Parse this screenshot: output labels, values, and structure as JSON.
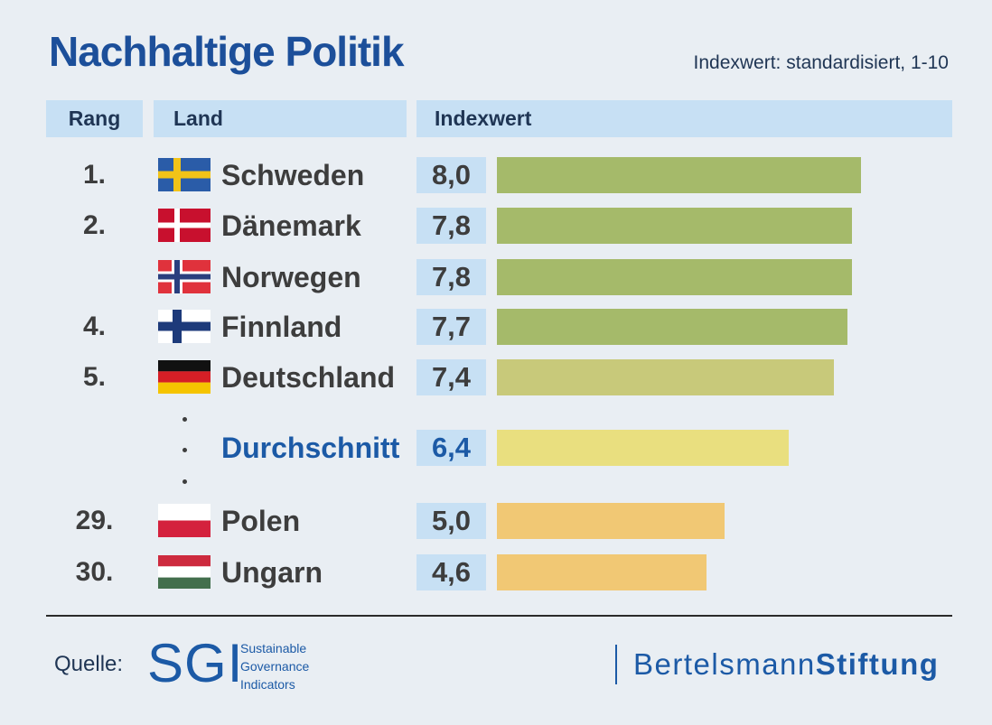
{
  "title": "Nachhaltige Politik",
  "subtitle": "Indexwert: standardisiert, 1-10",
  "headers": {
    "rang": "Rang",
    "land": "Land",
    "indexwert": "Indexwert"
  },
  "colors": {
    "green": "#a5ba6a",
    "light_green": "#c8c97a",
    "yellow": "#e9df7f",
    "orange": "#f1c874",
    "value_box": "#c7e0f4",
    "title": "#1c4f9a"
  },
  "chart_data": {
    "type": "bar",
    "orientation": "horizontal",
    "title": "Nachhaltige Politik",
    "subtitle": "Indexwert: standardisiert, 1-10",
    "xlim": [
      0,
      10
    ],
    "rows": [
      {
        "rank": "1.",
        "country": "Schweden",
        "flag": "sweden-flag",
        "value": 8.0,
        "label": "8,0",
        "color": "#a5ba6a"
      },
      {
        "rank": "2.",
        "country": "Dänemark",
        "flag": "denmark-flag",
        "value": 7.8,
        "label": "7,8",
        "color": "#a5ba6a"
      },
      {
        "rank": "",
        "country": "Norwegen",
        "flag": "norway-flag",
        "value": 7.8,
        "label": "7,8",
        "color": "#a5ba6a"
      },
      {
        "rank": "4.",
        "country": "Finnland",
        "flag": "finland-flag",
        "value": 7.7,
        "label": "7,7",
        "color": "#a5ba6a"
      },
      {
        "rank": "5.",
        "country": "Deutschland",
        "flag": "germany-flag",
        "value": 7.4,
        "label": "7,4",
        "color": "#c8c97a"
      },
      {
        "rank": "",
        "country": "Durchschnitt",
        "flag": "",
        "value": 6.4,
        "label": "6,4",
        "color": "#e9df7f",
        "average": true
      },
      {
        "rank": "29.",
        "country": "Polen",
        "flag": "poland-flag",
        "value": 5.0,
        "label": "5,0",
        "color": "#f1c874"
      },
      {
        "rank": "30.",
        "country": "Ungarn",
        "flag": "hungary-flag",
        "value": 4.6,
        "label": "4,6",
        "color": "#f1c874"
      }
    ]
  },
  "footer": {
    "source_label": "Quelle:",
    "sgi_logo": "SGI",
    "sgi_lines": [
      "Sustainable",
      "Governance",
      "Indicators"
    ],
    "bs_logo_light": "Bertelsmann",
    "bs_logo_bold": "Stiftung"
  }
}
